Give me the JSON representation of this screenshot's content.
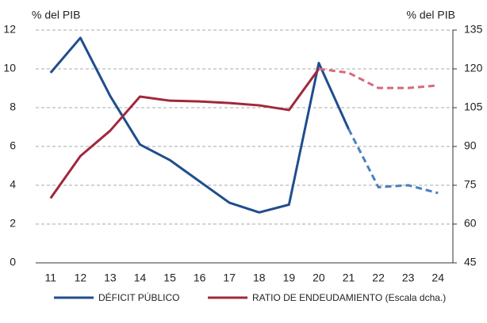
{
  "chart_data": {
    "type": "line",
    "y_label": "% del PIB",
    "y2_label": "% del PIB",
    "categories": [
      "11",
      "12",
      "13",
      "14",
      "15",
      "16",
      "17",
      "18",
      "19",
      "20",
      "21",
      "22",
      "23",
      "24"
    ],
    "series": [
      {
        "name": "DÉFICIT PÚBLICO",
        "color": "#1f4e8c",
        "dash_color": "#4a7fc0",
        "dash_from": 10,
        "values": [
          9.8,
          11.6,
          8.6,
          6.1,
          5.3,
          4.2,
          3.1,
          2.6,
          3.0,
          10.3,
          6.9,
          3.9,
          4.0,
          3.6
        ]
      },
      {
        "name": "RATIO DE ENDEUDAMIENTO (Escala dcha.)",
        "color": "#a0283c",
        "dash_color": "#d46a7e",
        "dash_from": 9,
        "axis": "y2",
        "values": [
          70,
          86.3,
          96.1,
          109.3,
          107.7,
          107.4,
          106.8,
          105.9,
          104.1,
          120,
          118.5,
          112.6,
          112.6,
          113.6
        ]
      }
    ],
    "ylim": [
      0,
      12
    ],
    "yticks": [
      0,
      2,
      4,
      6,
      8,
      10,
      12
    ],
    "y2lim": [
      45,
      135
    ],
    "y2ticks": [
      45,
      60,
      75,
      90,
      105,
      120,
      135
    ],
    "grid": true
  }
}
